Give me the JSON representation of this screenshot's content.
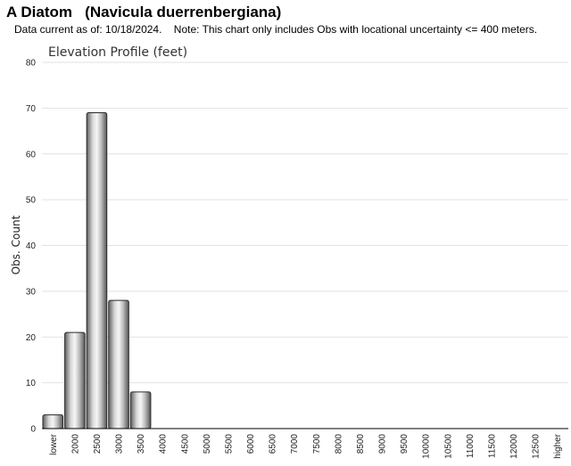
{
  "header": {
    "title": "A Diatom   (Navicula duerrenbergiana)",
    "subtitle": "Data current as of: 10/18/2024.    Note: This chart only includes Obs with locational uncertainty <= 400 meters."
  },
  "chart_data": {
    "type": "bar",
    "title": "Elevation Profile (feet)",
    "xlabel": "",
    "ylabel": "Obs. Count",
    "ylim": [
      0,
      80
    ],
    "yticks": [
      0,
      10,
      20,
      30,
      40,
      50,
      60,
      70,
      80
    ],
    "grid": true,
    "categories": [
      "lower",
      "2000",
      "2500",
      "3000",
      "3500",
      "4000",
      "4500",
      "5000",
      "5500",
      "6000",
      "6500",
      "7000",
      "7500",
      "8000",
      "8500",
      "9000",
      "9500",
      "10000",
      "10500",
      "11000",
      "11500",
      "12000",
      "12500",
      "higher"
    ],
    "values": [
      3,
      21,
      69,
      28,
      8,
      0,
      0,
      0,
      0,
      0,
      0,
      0,
      0,
      0,
      0,
      0,
      0,
      0,
      0,
      0,
      0,
      0,
      0,
      0
    ],
    "colors": {
      "bar_dark": "#6e6e6e",
      "bar_light": "#f4f4f4",
      "grid": "#e2e2e2",
      "axis": "#000000"
    }
  }
}
